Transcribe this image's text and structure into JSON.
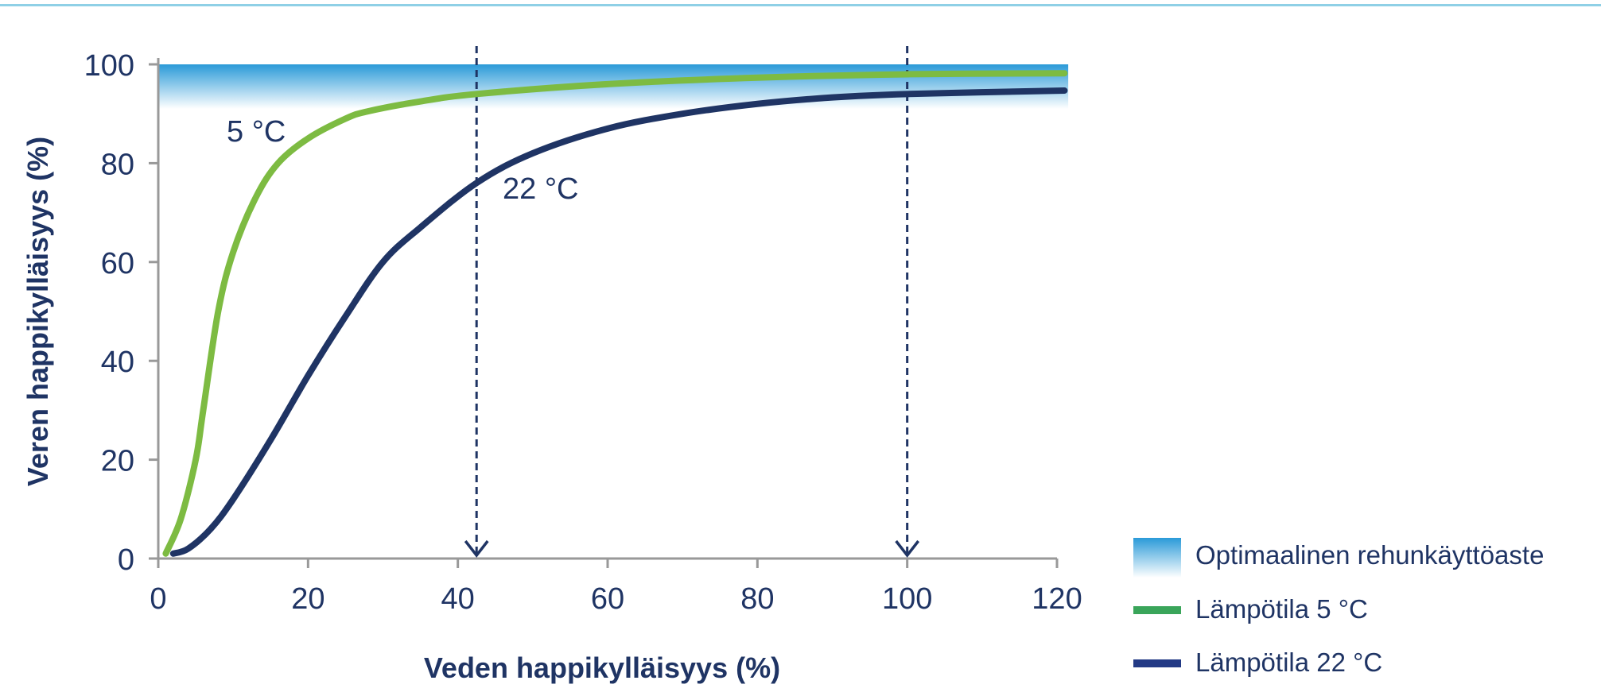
{
  "chart_data": {
    "type": "line",
    "xlabel": "Veden happikylläisyys (%)",
    "ylabel": "Veren happikylläisyys (%)",
    "xlim": [
      0,
      120
    ],
    "ylim": [
      0,
      100
    ],
    "x_ticks": [
      "0",
      "20",
      "40",
      "60",
      "80",
      "100",
      "120"
    ],
    "y_ticks": [
      "0",
      "20",
      "40",
      "60",
      "80",
      "100"
    ],
    "grid": false,
    "optimal_band": {
      "label": "Optimaalinen rehunkäyttöaste",
      "y_range": [
        91,
        100
      ],
      "color_top": "#2a9ad8",
      "color_bottom": "#ffffff"
    },
    "reference_lines": [
      {
        "x": 42.5
      },
      {
        "x": 100
      }
    ],
    "series": [
      {
        "name": "Lämpötila 5 °C",
        "annotation": "5 °C",
        "color": "#7dbb42",
        "legend_color": "#3aa55a",
        "x": [
          1,
          3,
          5,
          6,
          8,
          10,
          13,
          16,
          20,
          25,
          28,
          35,
          42.5,
          60,
          80,
          100,
          121
        ],
        "y": [
          1,
          8,
          20,
          30,
          50,
          62,
          73,
          80,
          85,
          89,
          90.5,
          92.5,
          94,
          96,
          97.3,
          98,
          98.2
        ]
      },
      {
        "name": "Lämpötila 22 °C",
        "annotation": "22 °C",
        "color": "#1f3464",
        "legend_color": "#233a85",
        "x": [
          2,
          4,
          7,
          10,
          15,
          20,
          25,
          30,
          35,
          42.5,
          50,
          60,
          70,
          80,
          90,
          100,
          121
        ],
        "y": [
          1,
          2,
          6,
          12,
          24,
          37,
          49,
          60,
          67,
          76,
          82,
          87,
          90,
          92,
          93.3,
          94,
          94.7
        ]
      }
    ],
    "legend_position": "bottom-right"
  }
}
